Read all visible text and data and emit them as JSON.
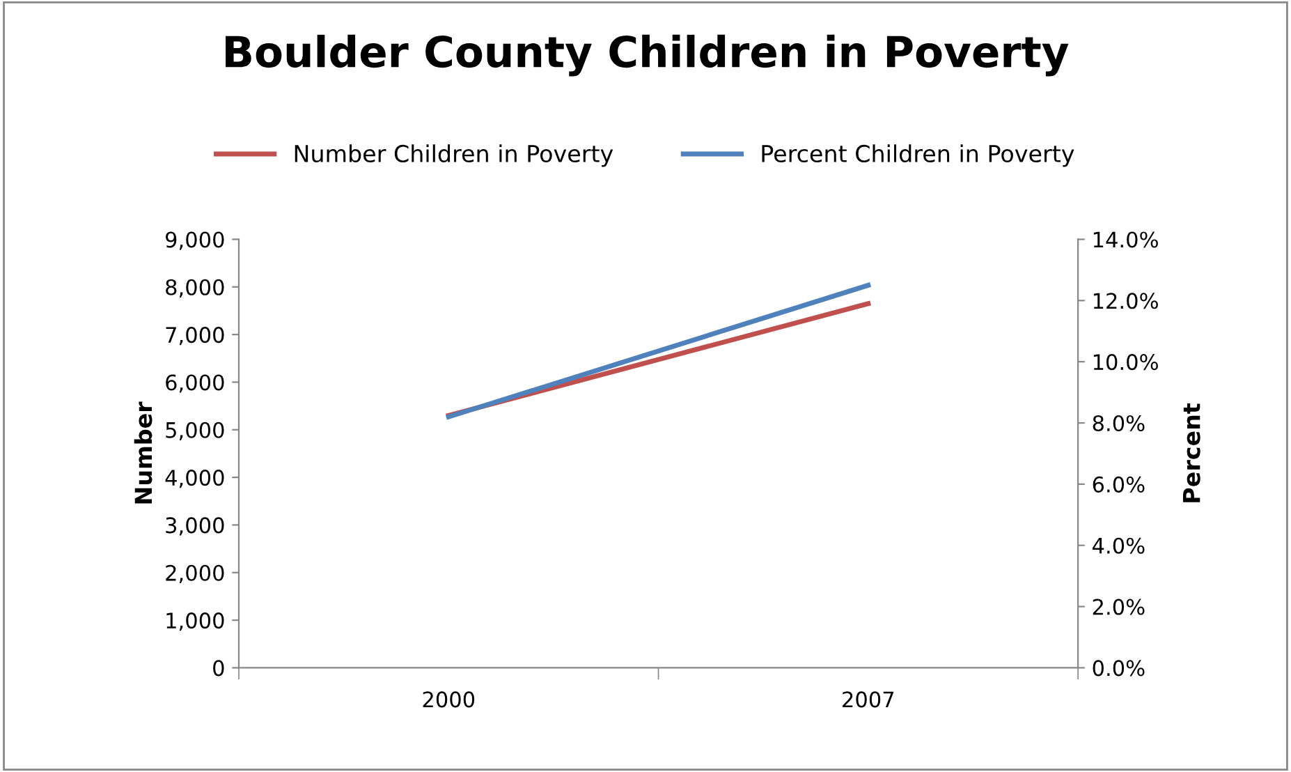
{
  "chart_data": {
    "type": "line",
    "title": "Boulder County Children in Poverty",
    "categories": [
      "2000",
      "2007"
    ],
    "series": [
      {
        "name": "Number Children in Poverty",
        "color": "#c0504d",
        "values": [
          5300,
          7650
        ]
      },
      {
        "name": "Percent Children in Poverty",
        "color": "#4f81bd",
        "values": [
          8.2,
          12.5
        ],
        "axis": "y2"
      }
    ],
    "ylabel": "Number",
    "y2label": "Percent",
    "ylim": [
      0,
      9000
    ],
    "yticks": [
      {
        "value": 0,
        "label": "0"
      },
      {
        "value": 1000,
        "label": "1,000"
      },
      {
        "value": 2000,
        "label": "2,000"
      },
      {
        "value": 3000,
        "label": "3,000"
      },
      {
        "value": 4000,
        "label": "4,000"
      },
      {
        "value": 5000,
        "label": "5,000"
      },
      {
        "value": 6000,
        "label": "6,000"
      },
      {
        "value": 7000,
        "label": "7,000"
      },
      {
        "value": 8000,
        "label": "8,000"
      },
      {
        "value": 9000,
        "label": "9,000"
      }
    ],
    "y2lim": [
      0,
      14
    ],
    "y2ticks": [
      {
        "value": 0,
        "label": "0.0%"
      },
      {
        "value": 2,
        "label": "2.0%"
      },
      {
        "value": 4,
        "label": "4.0%"
      },
      {
        "value": 6,
        "label": "6.0%"
      },
      {
        "value": 8,
        "label": "8.0%"
      },
      {
        "value": 10,
        "label": "10.0%"
      },
      {
        "value": 12,
        "label": "12.0%"
      },
      {
        "value": 14,
        "label": "14.0%"
      }
    ],
    "legend": "top",
    "grid": false,
    "marker": "none",
    "line_style": "solid"
  }
}
